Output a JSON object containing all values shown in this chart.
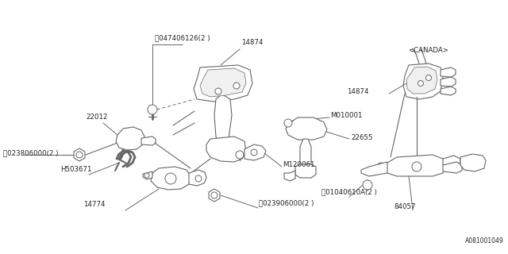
{
  "bg_color": "#ffffff",
  "line_color": "#666666",
  "text_color": "#222222",
  "diagram_ref": "A081001049",
  "figsize": [
    6.4,
    3.2
  ],
  "dpi": 100,
  "xlim": [
    0,
    640
  ],
  "ylim": [
    0,
    320
  ]
}
